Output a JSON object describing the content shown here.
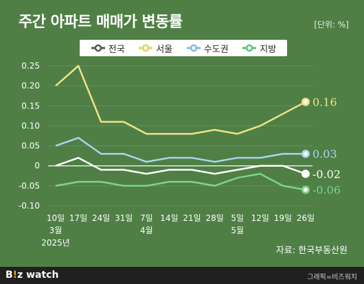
{
  "title": "주간 아파트 매매가 변동률",
  "unit_label": "[단위: %]",
  "source_label": "자료: 한국부동산원",
  "brand": {
    "prefix": "B",
    "dot": "!",
    "rest": "z watch"
  },
  "credit": "그래픽=비즈워치",
  "colors": {
    "background": "#4f7f45",
    "seoul": "#efe48a",
    "capital": "#a9d6f0",
    "national": "#ffffff",
    "local": "#7fd393",
    "grid": "#668f5c"
  },
  "chart_data": {
    "type": "line",
    "title": "주간 아파트 매매가 변동률",
    "xlabel": "",
    "ylabel": "",
    "ylim": [
      -0.1,
      0.25
    ],
    "yticks": [
      "0.25",
      "0.20",
      "0.15",
      "0.10",
      "0.05",
      "0",
      "-0.05",
      "-0.10"
    ],
    "ytick_values": [
      0.25,
      0.2,
      0.15,
      0.1,
      0.05,
      0,
      -0.05,
      -0.1
    ],
    "grid": true,
    "legend_position": "top",
    "categories": [
      "10일",
      "17일",
      "24일",
      "31일",
      "7일",
      "14일",
      "21일",
      "28일",
      "5일",
      "12일",
      "19일",
      "26일"
    ],
    "month_labels": [
      {
        "index": 0,
        "lines": [
          "3월",
          "2025년"
        ]
      },
      {
        "index": 4,
        "lines": [
          "4월"
        ]
      },
      {
        "index": 8,
        "lines": [
          "5월"
        ]
      }
    ],
    "series": [
      {
        "name": "전국",
        "color": "#ffffff",
        "values": [
          0.0,
          0.02,
          -0.01,
          -0.01,
          -0.02,
          -0.01,
          -0.01,
          -0.02,
          -0.01,
          0.0,
          0.0,
          -0.02
        ],
        "end_label": "-0.02"
      },
      {
        "name": "서울",
        "color": "#efe48a",
        "values": [
          0.2,
          0.25,
          0.11,
          0.11,
          0.08,
          0.08,
          0.08,
          0.09,
          0.08,
          0.1,
          0.13,
          0.16
        ],
        "end_label": "0.16"
      },
      {
        "name": "수도권",
        "color": "#a9d6f0",
        "values": [
          0.05,
          0.07,
          0.03,
          0.03,
          0.01,
          0.02,
          0.02,
          0.01,
          0.02,
          0.02,
          0.03,
          0.03
        ],
        "end_label": "0.03"
      },
      {
        "name": "지방",
        "color": "#7fd393",
        "values": [
          -0.05,
          -0.04,
          -0.04,
          -0.05,
          -0.05,
          -0.04,
          -0.04,
          -0.05,
          -0.03,
          -0.02,
          -0.05,
          -0.06
        ],
        "end_label": "-0.06"
      }
    ]
  }
}
